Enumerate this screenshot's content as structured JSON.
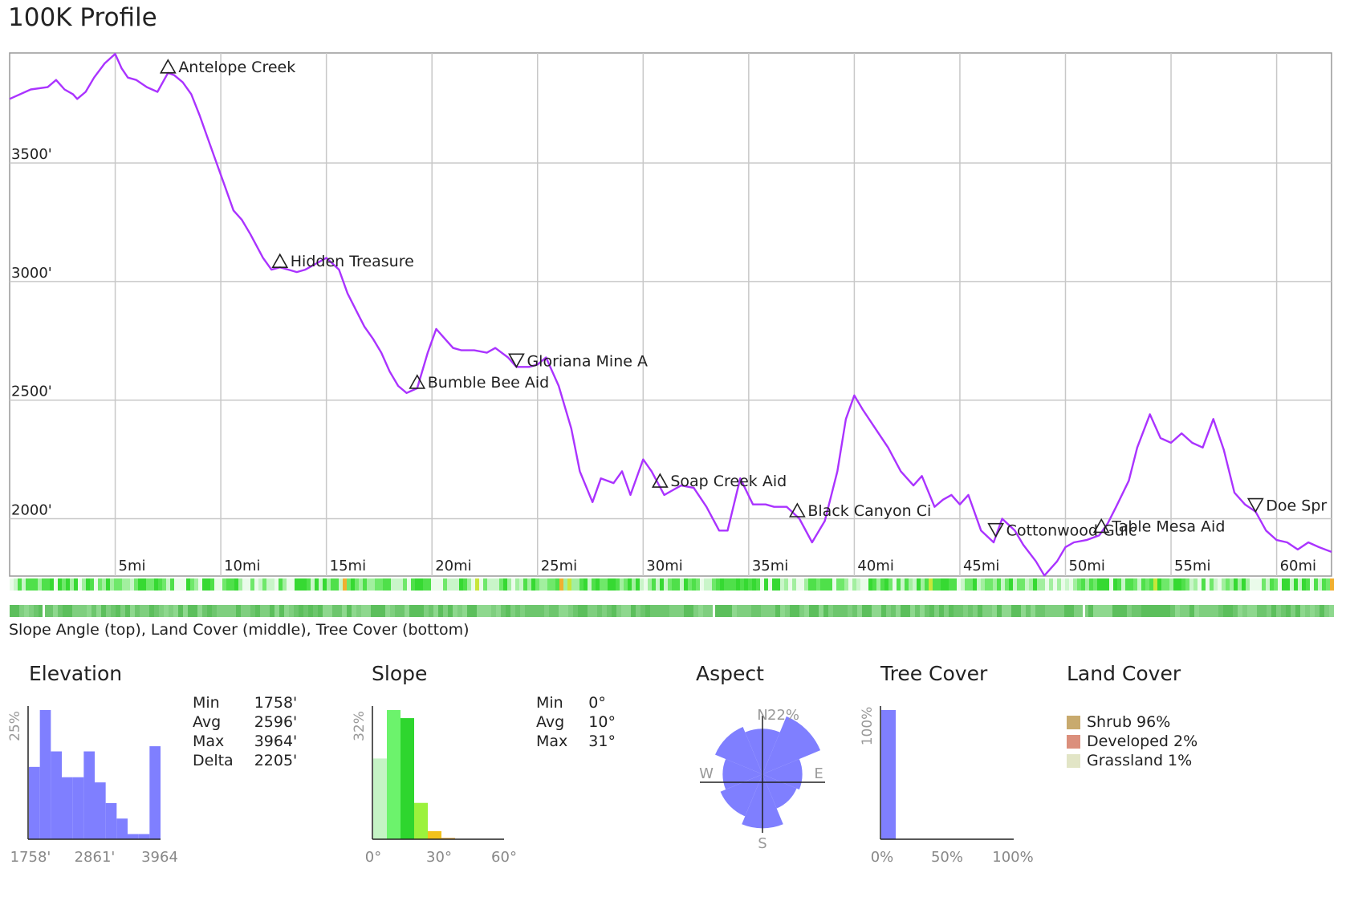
{
  "title": "100K Profile",
  "colors": {
    "elevation_line": "#aa33ff",
    "histogram": "#7f7fff",
    "grid": "#c8c8c8"
  },
  "chart_data": [
    {
      "type": "line",
      "name": "elevation-profile",
      "xlabel": "",
      "ylabel": "",
      "x_unit": "mi",
      "xlim": [
        0,
        62.6
      ],
      "ylim": [
        1758,
        3964
      ],
      "x_ticks": [
        5,
        10,
        15,
        20,
        25,
        30,
        35,
        40,
        45,
        50,
        55,
        60
      ],
      "x_tick_labels": [
        "5mi",
        "10mi",
        "15mi",
        "20mi",
        "25mi",
        "30mi",
        "35mi",
        "40mi",
        "45mi",
        "50mi",
        "55mi",
        "60mi"
      ],
      "y_ticks": [
        2000,
        2500,
        3000,
        3500
      ],
      "y_tick_labels": [
        "2000'",
        "2500'",
        "3000'",
        "3500'"
      ],
      "x": [
        0,
        1,
        1.8,
        2.2,
        2.6,
        3,
        3.2,
        3.6,
        4,
        4.5,
        5,
        5.3,
        5.6,
        6,
        6.5,
        7,
        7.5,
        7.8,
        8.2,
        8.6,
        9,
        9.4,
        9.8,
        10.2,
        10.6,
        11,
        11.4,
        12,
        12.4,
        12.8,
        13.2,
        13.6,
        14,
        14.4,
        15,
        15.6,
        16,
        16.4,
        16.8,
        17.2,
        17.6,
        18,
        18.4,
        18.8,
        19.3,
        19.8,
        20.2,
        20.6,
        21,
        21.4,
        22,
        22.6,
        23,
        23.6,
        24,
        24.6,
        25,
        25.4,
        26,
        26.6,
        27,
        27.6,
        28,
        28.6,
        29,
        29.4,
        30,
        30.4,
        31,
        31.4,
        31.8,
        32.4,
        33,
        33.6,
        34,
        34.6,
        35.2,
        35.8,
        36.2,
        36.8,
        37.4,
        38,
        38.6,
        39.2,
        39.6,
        40,
        40.4,
        41,
        41.6,
        42.2,
        42.8,
        43.2,
        43.8,
        44.2,
        44.6,
        45,
        45.4,
        46,
        46.6,
        47,
        47.6,
        48,
        48.6,
        49,
        49.6,
        50,
        50.4,
        51,
        51.6,
        52,
        52.4,
        53,
        53.4,
        54,
        54.5,
        55,
        55.5,
        56,
        56.5,
        57,
        57.5,
        58,
        58.5,
        59,
        59.5,
        60,
        60.5,
        61,
        61.5,
        62,
        62.6
      ],
      "y": [
        3770,
        3810,
        3820,
        3850,
        3810,
        3790,
        3770,
        3800,
        3860,
        3920,
        3960,
        3900,
        3860,
        3850,
        3820,
        3800,
        3880,
        3870,
        3840,
        3790,
        3700,
        3600,
        3500,
        3400,
        3300,
        3260,
        3200,
        3100,
        3050,
        3060,
        3050,
        3040,
        3050,
        3070,
        3100,
        3050,
        2950,
        2880,
        2810,
        2760,
        2700,
        2620,
        2560,
        2530,
        2550,
        2700,
        2800,
        2760,
        2720,
        2710,
        2710,
        2700,
        2720,
        2680,
        2640,
        2640,
        2650,
        2680,
        2560,
        2380,
        2200,
        2070,
        2170,
        2150,
        2200,
        2100,
        2250,
        2200,
        2100,
        2120,
        2140,
        2130,
        2050,
        1950,
        1950,
        2170,
        2060,
        2060,
        2050,
        2050,
        2000,
        1900,
        1990,
        2200,
        2420,
        2520,
        2460,
        2380,
        2300,
        2200,
        2140,
        2180,
        2050,
        2080,
        2100,
        2060,
        2100,
        1950,
        1900,
        2000,
        1950,
        1890,
        1820,
        1760,
        1820,
        1880,
        1900,
        1910,
        1930,
        1980,
        2050,
        2160,
        2300,
        2440,
        2340,
        2320,
        2360,
        2320,
        2300,
        2420,
        2290,
        2110,
        2060,
        2030,
        1950,
        1910,
        1900,
        1870,
        1900,
        1880,
        1860
      ],
      "waypoints": [
        {
          "label": "Antelope Creek",
          "mi": 7.5,
          "marker": "up"
        },
        {
          "label": "Hidden Treasure",
          "mi": 12.8,
          "marker": "up"
        },
        {
          "label": "Bumble Bee Aid",
          "mi": 19.3,
          "marker": "up"
        },
        {
          "label": "Gloriana Mine A",
          "mi": 24.0,
          "marker": "down"
        },
        {
          "label": "Soap Creek Aid",
          "mi": 30.8,
          "marker": "up"
        },
        {
          "label": "Black Canyon Ci",
          "mi": 37.3,
          "marker": "up"
        },
        {
          "label": "Cottonwood Gulc",
          "mi": 46.7,
          "marker": "down"
        },
        {
          "label": "Table Mesa Aid",
          "mi": 51.7,
          "marker": "up"
        },
        {
          "label": "Doe Spr",
          "mi": 59.0,
          "marker": "down"
        }
      ]
    },
    {
      "type": "bar",
      "name": "elevation-histogram",
      "title": "Elevation",
      "x_tick_labels": [
        "1758'",
        "2861'",
        "3964"
      ],
      "ylabel": "25%",
      "ylim": [
        0,
        25
      ],
      "values": [
        14,
        25,
        17,
        12,
        12,
        17,
        11,
        7,
        4,
        1,
        1,
        18
      ]
    },
    {
      "type": "bar",
      "name": "slope-histogram",
      "title": "Slope",
      "x_tick_labels": [
        "0°",
        "30°",
        "60°"
      ],
      "ylabel": "32%",
      "ylim": [
        0,
        32
      ],
      "values": [
        20,
        32,
        30,
        9,
        2,
        0.3
      ],
      "colors": [
        "#c5f3c5",
        "#6cf36c",
        "#2ed62e",
        "#9bf23c",
        "#f3c21c",
        "#e8a020"
      ]
    },
    {
      "type": "polar",
      "name": "aspect-rose",
      "title": "Aspect",
      "directions": [
        "N",
        "NE",
        "E",
        "SE",
        "S",
        "SW",
        "W",
        "NW"
      ],
      "values": [
        16,
        22,
        14,
        13,
        19,
        16,
        14,
        18
      ],
      "max_label": "22%",
      "compass_labels": {
        "n": "N",
        "e": "E",
        "s": "S",
        "w": "W"
      }
    },
    {
      "type": "bar",
      "name": "tree-cover-histogram",
      "title": "Tree Cover",
      "x_tick_labels": [
        "0%",
        "50%",
        "100%"
      ],
      "ylabel": "100%",
      "ylim": [
        0,
        100
      ],
      "values": [
        100
      ]
    }
  ],
  "caption": "Slope Angle (top), Land Cover (middle), Tree Cover (bottom)",
  "elevation_stats": {
    "title": "Elevation",
    "rows": [
      {
        "label": "Min",
        "value": "1758'"
      },
      {
        "label": "Avg",
        "value": "2596'"
      },
      {
        "label": "Max",
        "value": "3964'"
      },
      {
        "label": "Delta",
        "value": "2205'"
      }
    ]
  },
  "slope_stats": {
    "title": "Slope",
    "rows": [
      {
        "label": "Min",
        "value": "0°"
      },
      {
        "label": "Avg",
        "value": "10°"
      },
      {
        "label": "Max",
        "value": "31°"
      }
    ]
  },
  "aspect": {
    "title": "Aspect"
  },
  "tree_cover": {
    "title": "Tree Cover"
  },
  "land_cover": {
    "title": "Land Cover",
    "items": [
      {
        "label": "Shrub 96%",
        "color": "#c8aa6e"
      },
      {
        "label": "Developed 2%",
        "color": "#db8f7c"
      },
      {
        "label": "Grassland 1%",
        "color": "#e2e5c6"
      }
    ]
  }
}
